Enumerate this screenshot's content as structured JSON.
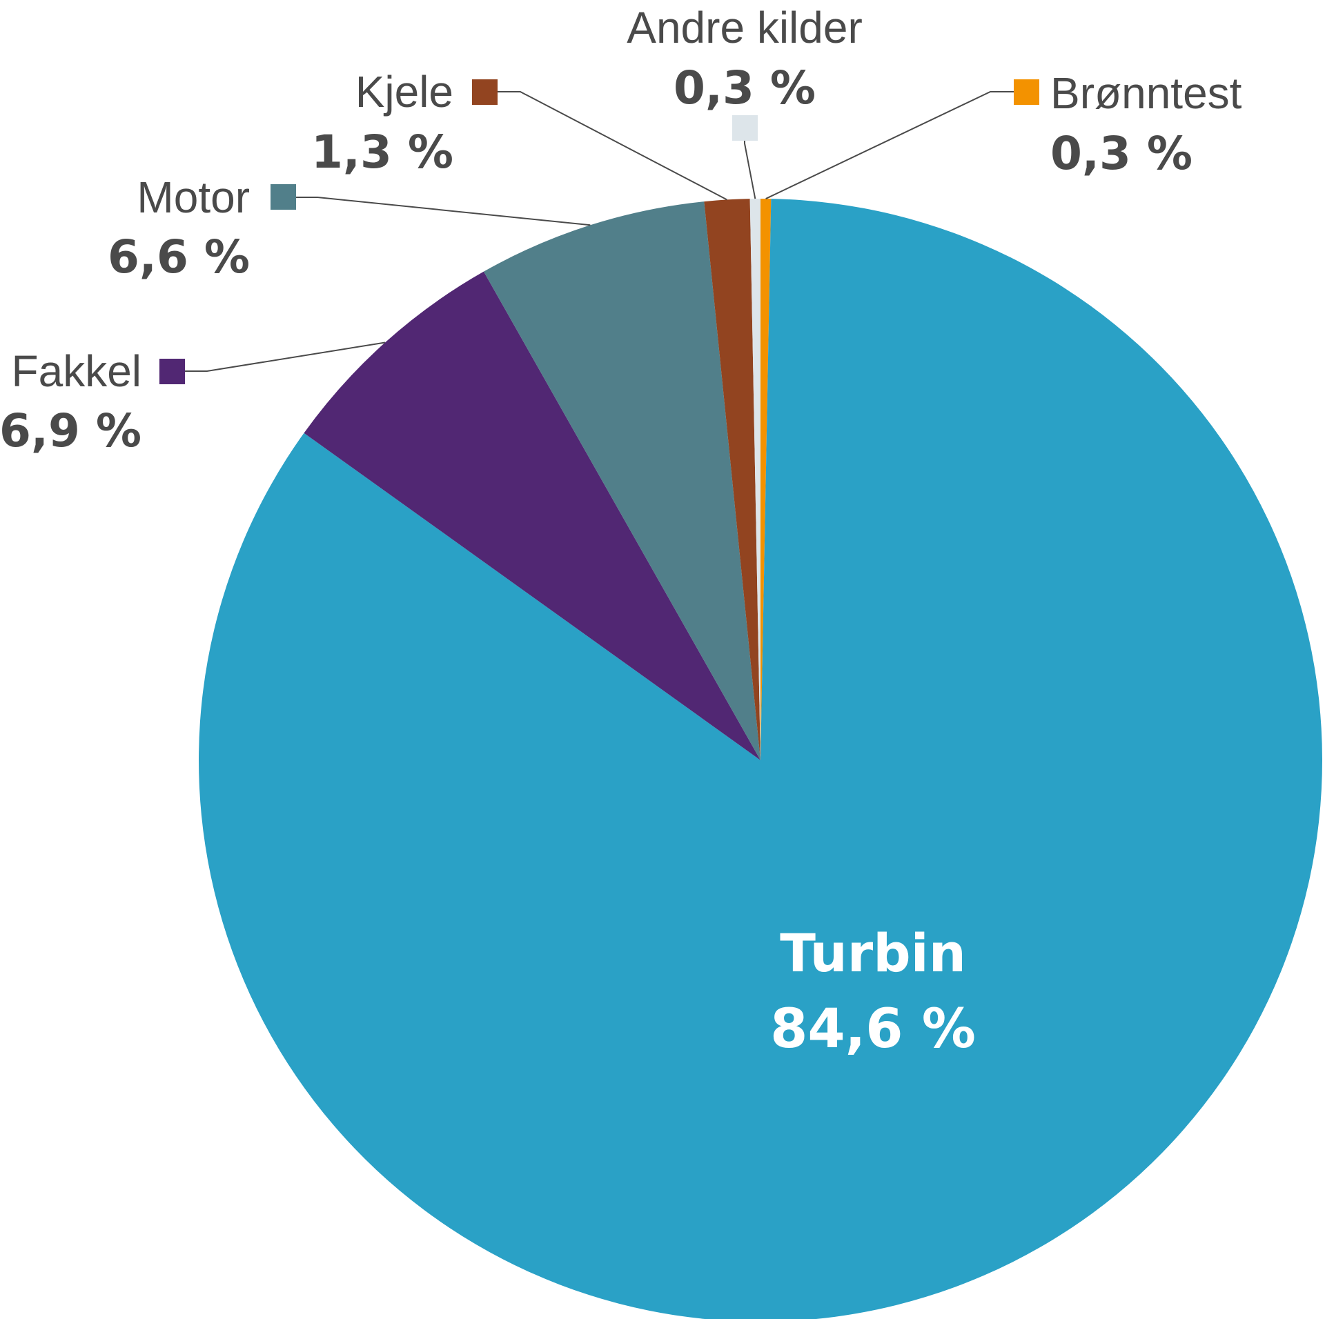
{
  "chart_data": {
    "type": "pie",
    "slices": [
      {
        "label": "Brønntest",
        "value": 0.3,
        "value_label": "0,3 %",
        "color": "#f39200"
      },
      {
        "label": "Turbin",
        "value": 84.6,
        "value_label": "84,6 %",
        "color": "#2aa1c6"
      },
      {
        "label": "Fakkel",
        "value": 6.9,
        "value_label": "6,9 %",
        "color": "#512773"
      },
      {
        "label": "Motor",
        "value": 6.6,
        "value_label": "6,6 %",
        "color": "#517f8a"
      },
      {
        "label": "Kjele",
        "value": 1.3,
        "value_label": "1,3 %",
        "color": "#924420"
      },
      {
        "label": "Andre kilder",
        "value": 0.3,
        "value_label": "0,3 %",
        "color": "#dde5ea"
      }
    ],
    "start_angle": "12 o'clock",
    "direction": "clockwise",
    "label_placement": "outside with leader lines; largest slice labelled inside"
  }
}
